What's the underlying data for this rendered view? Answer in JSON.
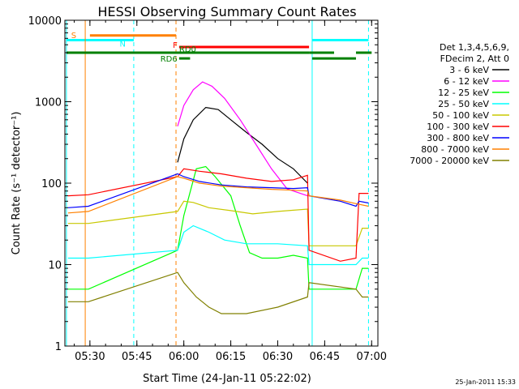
{
  "chart_data": {
    "type": "line",
    "title": "HESSI Observing Summary Count Rates",
    "xlabel": "Start Time (24-Jan-11 05:22:02)",
    "ylabel": "Count Rate (s⁻¹ detector⁻¹)",
    "y_scale": "log",
    "ylim": [
      1,
      10000
    ],
    "xlim": [
      "05:22",
      "07:02"
    ],
    "x_ticks": [
      "05:30",
      "05:45",
      "06:00",
      "06:15",
      "06:30",
      "06:45",
      "07:00"
    ],
    "y_ticks": [
      "1",
      "10",
      "100",
      "1000",
      "10000"
    ],
    "timestamp": "25-Jan-2011 15:33",
    "legend": {
      "header": [
        "Det 1,3,4,5,6,9,",
        "FDecim 2, Att 0"
      ],
      "position": "right"
    },
    "grid": false,
    "series": [
      {
        "name": "3 - 6 keV",
        "color": "#000000",
        "points": [
          [
            "05:58:00",
            180
          ],
          [
            "06:00",
            350
          ],
          [
            "06:03",
            600
          ],
          [
            "06:07",
            850
          ],
          [
            "06:11",
            800
          ],
          [
            "06:15",
            600
          ],
          [
            "06:20",
            420
          ],
          [
            "06:25",
            300
          ],
          [
            "06:30",
            200
          ],
          [
            "06:35",
            150
          ],
          [
            "06:39:30",
            100
          ]
        ]
      },
      {
        "name": "6 - 12 keV",
        "color": "#ff00ff",
        "points": [
          [
            "05:58:00",
            500
          ],
          [
            "06:00",
            900
          ],
          [
            "06:03",
            1400
          ],
          [
            "06:06",
            1750
          ],
          [
            "06:09",
            1550
          ],
          [
            "06:13",
            1100
          ],
          [
            "06:18",
            600
          ],
          [
            "06:23",
            300
          ],
          [
            "06:28",
            150
          ],
          [
            "06:33",
            85
          ],
          [
            "06:39:30",
            70
          ]
        ]
      },
      {
        "name": "12 - 25 keV",
        "color": "#00ff00",
        "points": [
          [
            "05:23",
            5
          ],
          [
            "05:29:30",
            5
          ],
          [
            "05:58:00",
            15
          ],
          [
            "06:00",
            40
          ],
          [
            "06:04",
            150
          ],
          [
            "06:07",
            160
          ],
          [
            "06:10",
            120
          ],
          [
            "06:15",
            70
          ],
          [
            "06:18",
            30
          ],
          [
            "06:21",
            14
          ],
          [
            "06:25",
            12
          ],
          [
            "06:30",
            12
          ],
          [
            "06:35",
            13
          ],
          [
            "06:39:30",
            12
          ],
          [
            "06:40",
            5
          ],
          [
            "06:55",
            5
          ],
          [
            "06:57",
            9
          ],
          [
            "06:59",
            9
          ]
        ]
      },
      {
        "name": "25 - 50 keV",
        "color": "#00ffff",
        "points": [
          [
            "05:23",
            12
          ],
          [
            "05:29:30",
            12
          ],
          [
            "05:58:00",
            15
          ],
          [
            "06:00",
            25
          ],
          [
            "06:03",
            30
          ],
          [
            "06:08",
            25
          ],
          [
            "06:13",
            20
          ],
          [
            "06:20",
            18
          ],
          [
            "06:30",
            18
          ],
          [
            "06:39:30",
            17
          ],
          [
            "06:40",
            10
          ],
          [
            "06:55",
            10
          ],
          [
            "06:57",
            12
          ],
          [
            "06:59",
            12
          ]
        ]
      },
      {
        "name": "50 - 100 keV",
        "color": "#c8c800",
        "points": [
          [
            "05:23",
            32
          ],
          [
            "05:29:30",
            32
          ],
          [
            "05:58:00",
            45
          ],
          [
            "06:00",
            60
          ],
          [
            "06:03",
            58
          ],
          [
            "06:08",
            50
          ],
          [
            "06:15",
            46
          ],
          [
            "06:22",
            42
          ],
          [
            "06:30",
            45
          ],
          [
            "06:39:30",
            48
          ],
          [
            "06:40",
            17
          ],
          [
            "06:55",
            17
          ],
          [
            "06:57",
            28
          ],
          [
            "06:59",
            28
          ]
        ]
      },
      {
        "name": "100 - 300 keV",
        "color": "#ff0000",
        "points": [
          [
            "05:23",
            70
          ],
          [
            "05:29:30",
            72
          ],
          [
            "05:58:00",
            120
          ],
          [
            "06:00",
            150
          ],
          [
            "06:05",
            140
          ],
          [
            "06:12",
            130
          ],
          [
            "06:20",
            115
          ],
          [
            "06:28",
            105
          ],
          [
            "06:35",
            110
          ],
          [
            "06:39:30",
            125
          ],
          [
            "06:40",
            15
          ],
          [
            "06:50",
            11
          ],
          [
            "06:55",
            12
          ],
          [
            "06:56",
            75
          ],
          [
            "06:59",
            75
          ]
        ]
      },
      {
        "name": "300 - 800 keV",
        "color": "#0000ff",
        "points": [
          [
            "05:23",
            50
          ],
          [
            "05:29:30",
            52
          ],
          [
            "05:58:00",
            130
          ],
          [
            "06:00",
            120
          ],
          [
            "06:05",
            105
          ],
          [
            "06:12",
            95
          ],
          [
            "06:20",
            90
          ],
          [
            "06:28",
            88
          ],
          [
            "06:35",
            86
          ],
          [
            "06:39:30",
            88
          ],
          [
            "06:40",
            70
          ],
          [
            "06:50",
            60
          ],
          [
            "06:55",
            52
          ],
          [
            "06:56",
            60
          ],
          [
            "06:59",
            57
          ]
        ]
      },
      {
        "name": "800 - 7000 keV",
        "color": "#ff8000",
        "points": [
          [
            "05:23",
            43
          ],
          [
            "05:29:30",
            45
          ],
          [
            "05:58:00",
            120
          ],
          [
            "06:00",
            115
          ],
          [
            "06:05",
            100
          ],
          [
            "06:12",
            92
          ],
          [
            "06:20",
            88
          ],
          [
            "06:28",
            84
          ],
          [
            "06:35",
            82
          ],
          [
            "06:39:30",
            80
          ],
          [
            "06:40",
            70
          ],
          [
            "06:50",
            62
          ],
          [
            "06:55",
            56
          ],
          [
            "06:59",
            52
          ]
        ]
      },
      {
        "name": "7000 - 20000 keV",
        "color": "#808000",
        "points": [
          [
            "05:23",
            3.5
          ],
          [
            "05:29:30",
            3.5
          ],
          [
            "05:58:00",
            8
          ],
          [
            "06:00",
            6
          ],
          [
            "06:04",
            4
          ],
          [
            "06:08",
            3
          ],
          [
            "06:12",
            2.5
          ],
          [
            "06:20",
            2.5
          ],
          [
            "06:30",
            3
          ],
          [
            "06:39:30",
            4
          ],
          [
            "06:40",
            6
          ],
          [
            "06:55",
            5
          ],
          [
            "06:57",
            4
          ],
          [
            "06:59",
            4
          ]
        ]
      }
    ],
    "annotations": {
      "S": {
        "label": "S",
        "color": "#ff8000",
        "line_time": "05:28:30",
        "bar": [
          "05:30",
          "05:57:30"
        ],
        "value": 6500
      },
      "N": {
        "label": "N",
        "color": "#00ffff",
        "line_times": [
          "05:22:30",
          "05:44:00",
          "06:41:00",
          "06:59:00"
        ],
        "bars": [
          [
            "05:22:30",
            "05:44:00"
          ],
          [
            "06:41:00",
            "06:59:00"
          ]
        ],
        "value": 5700
      },
      "F": {
        "label": "F",
        "color": "#ff0000",
        "line_time": "05:57:30",
        "bar": [
          "05:58:30",
          "06:40:00"
        ],
        "value": 4700
      },
      "RD0": {
        "label": "RD0",
        "color": "#008000",
        "bars": [
          [
            "05:22:30",
            "06:40:00"
          ],
          [
            "06:40:00",
            "06:48:00"
          ],
          [
            "06:55:00",
            "07:00:00"
          ]
        ],
        "value": 4000
      },
      "RD6": {
        "label": "RD6",
        "color": "#008000",
        "bars": [
          [
            "05:58:30",
            "06:02:00"
          ],
          [
            "06:41:00",
            "06:55:00"
          ]
        ],
        "value": 3400
      }
    }
  }
}
